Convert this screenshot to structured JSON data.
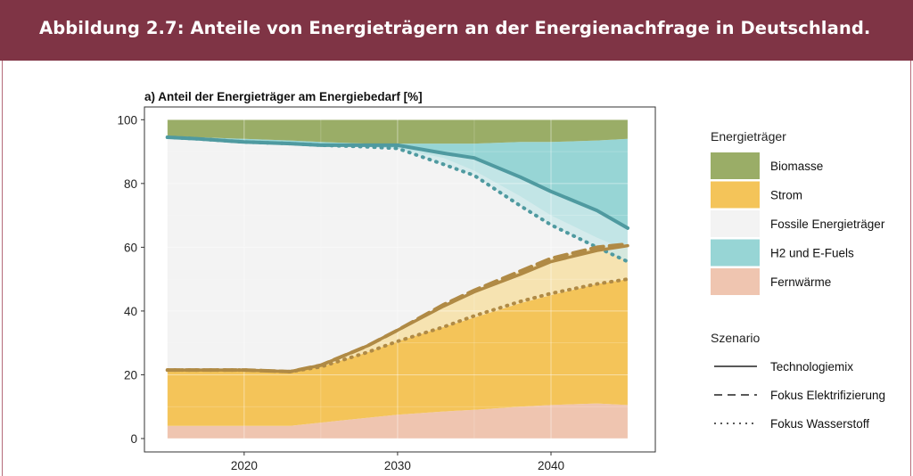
{
  "header": {
    "title": "Abbildung 2.7: Anteile von Energieträgern an der Energienachfrage in Deutschland."
  },
  "chart_data": {
    "type": "area",
    "title": "a) Anteil der Energieträger am Energiebedarf [%]",
    "xlabel": "",
    "ylabel": "",
    "xlim": [
      2015,
      2045
    ],
    "ylim": [
      0,
      100
    ],
    "x_ticks": [
      2020,
      2030,
      2040
    ],
    "y_ticks": [
      0,
      20,
      40,
      60,
      80,
      100
    ],
    "grid": true,
    "legend_position": "right",
    "x": [
      2015,
      2017,
      2020,
      2023,
      2025,
      2028,
      2030,
      2033,
      2035,
      2038,
      2040,
      2043,
      2045
    ],
    "cumulative_boundaries": {
      "fernwaerme_top": [
        4,
        4,
        4,
        4,
        5,
        6.5,
        7.5,
        8.5,
        9,
        10,
        10.5,
        11,
        10.5
      ],
      "strom_top": [
        21.5,
        21.5,
        21.5,
        21,
        22.5,
        27,
        30.5,
        35,
        38,
        42.5,
        45,
        48.5,
        50
      ],
      "fossil_top": [
        94.5,
        94,
        93,
        92.5,
        92,
        91.5,
        91,
        88,
        84,
        76,
        70,
        63,
        59
      ],
      "h2_top": [
        95,
        94.5,
        94,
        93.5,
        93,
        92.5,
        92.5,
        92.5,
        92.5,
        93,
        93,
        93.5,
        94
      ],
      "biomasse_top": [
        100,
        100,
        100,
        100,
        100,
        100,
        100,
        100,
        100,
        100,
        100,
        100,
        100
      ]
    },
    "series": [
      {
        "name": "Technologiemix",
        "style": "solid",
        "strom_top": [
          21.5,
          21.5,
          21.5,
          21,
          23,
          29,
          34,
          41.5,
          46,
          51.5,
          55.5,
          59,
          60.5
        ],
        "fossil_top": [
          94.5,
          94,
          93,
          92.5,
          92,
          92,
          92,
          89.5,
          88,
          82,
          77.5,
          71.5,
          66
        ]
      },
      {
        "name": "Fokus Elektrifizierung",
        "style": "dashed",
        "strom_top": [
          21.5,
          21.5,
          21.5,
          21,
          23,
          29,
          34,
          42,
          46.5,
          52.5,
          56.5,
          60,
          61
        ]
      },
      {
        "name": "Fokus Wasserstoff",
        "style": "dotted",
        "strom_top": [
          21.5,
          21.5,
          21.5,
          21,
          22.5,
          27,
          30.5,
          35,
          38.5,
          43,
          45.5,
          48.5,
          50
        ],
        "fossil_top": [
          94.5,
          94,
          93,
          92.5,
          92,
          91.5,
          91,
          86,
          82.5,
          73,
          67,
          60,
          55.5
        ]
      }
    ],
    "legend": {
      "energy_title": "Energieträger",
      "energy_items": [
        {
          "label": "Biomasse",
          "color": "#9aad67"
        },
        {
          "label": "Strom",
          "color": "#f4c459"
        },
        {
          "label": "Fossile Energieträger",
          "color": "#f3f3f3"
        },
        {
          "label": "H2 und E-Fuels",
          "color": "#97d5d5"
        },
        {
          "label": "Fernwärme",
          "color": "#efc5b0"
        }
      ],
      "scenario_title": "Szenario",
      "scenario_items": [
        {
          "label": "Technologiemix",
          "style": "solid"
        },
        {
          "label": "Fokus Elektrifizierung",
          "style": "dashed"
        },
        {
          "label": "Fokus Wasserstoff",
          "style": "dotted"
        }
      ]
    },
    "colors": {
      "biomasse": "#9aad67",
      "strom": "#f4c459",
      "strom_band": "#f6dfa4",
      "fossil": "#f3f3f3",
      "h2": "#97d5d5",
      "h2_band": "#cde8ea",
      "fernwaerme": "#efc5b0",
      "strom_line": "#b08a45",
      "h2_line": "#4f9aa0",
      "banner": "#7f3445"
    }
  }
}
